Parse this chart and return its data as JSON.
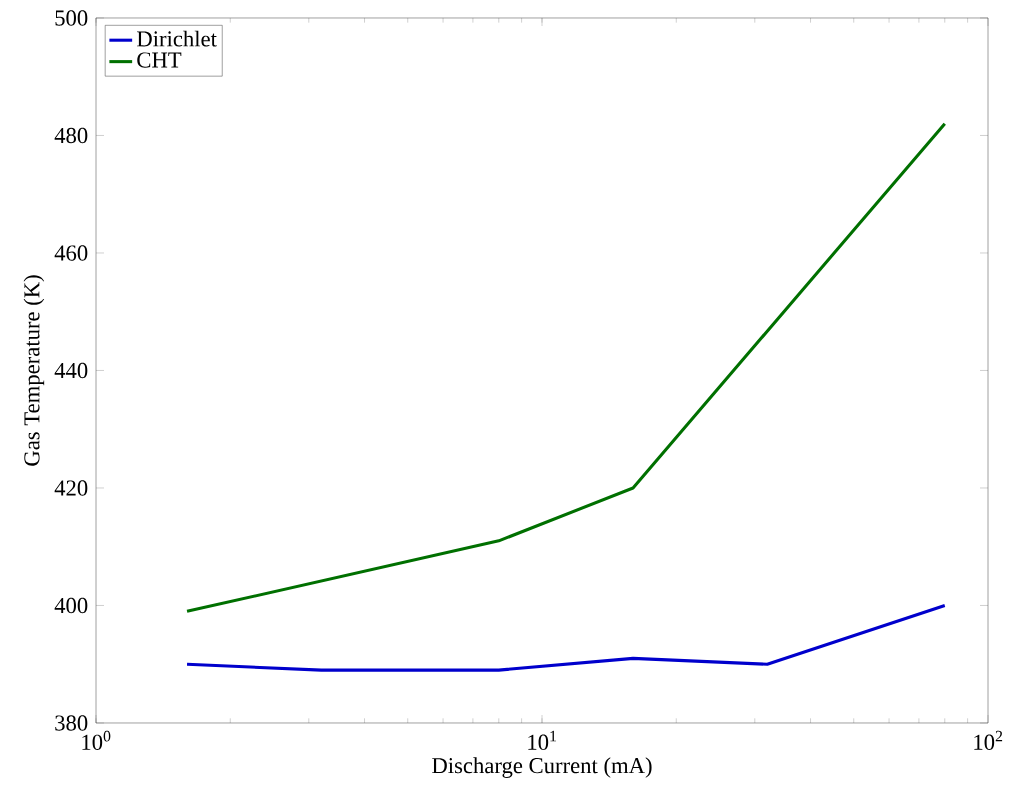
{
  "chart_data": {
    "type": "line",
    "xlabel": "Discharge Current (mA)",
    "ylabel": "Gas Temperature (K)",
    "log": "x",
    "xlim": [
      1,
      100
    ],
    "xticks": [
      {
        "value": 1,
        "label": "10$^{0}$"
      },
      {
        "value": 10,
        "label": "10$^{1}$"
      },
      {
        "value": 100,
        "label": "10$^{2}$"
      }
    ],
    "ylim": [
      380,
      500
    ],
    "yticks": [
      380,
      400,
      420,
      440,
      460,
      480,
      500
    ],
    "grid": false,
    "legend": "top left",
    "line_style": "solid",
    "marker": "none",
    "series": [
      {
        "name": "Dirichlet",
        "color": "#0000cc",
        "x": [
          1.6,
          3.2,
          8,
          16,
          32,
          80
        ],
        "values": [
          390,
          389,
          389,
          391,
          390,
          400
        ]
      },
      {
        "name": "CHT",
        "color": "#007000",
        "x": [
          1.6,
          8,
          16,
          80
        ],
        "values": [
          399,
          411,
          420,
          482
        ]
      }
    ]
  }
}
